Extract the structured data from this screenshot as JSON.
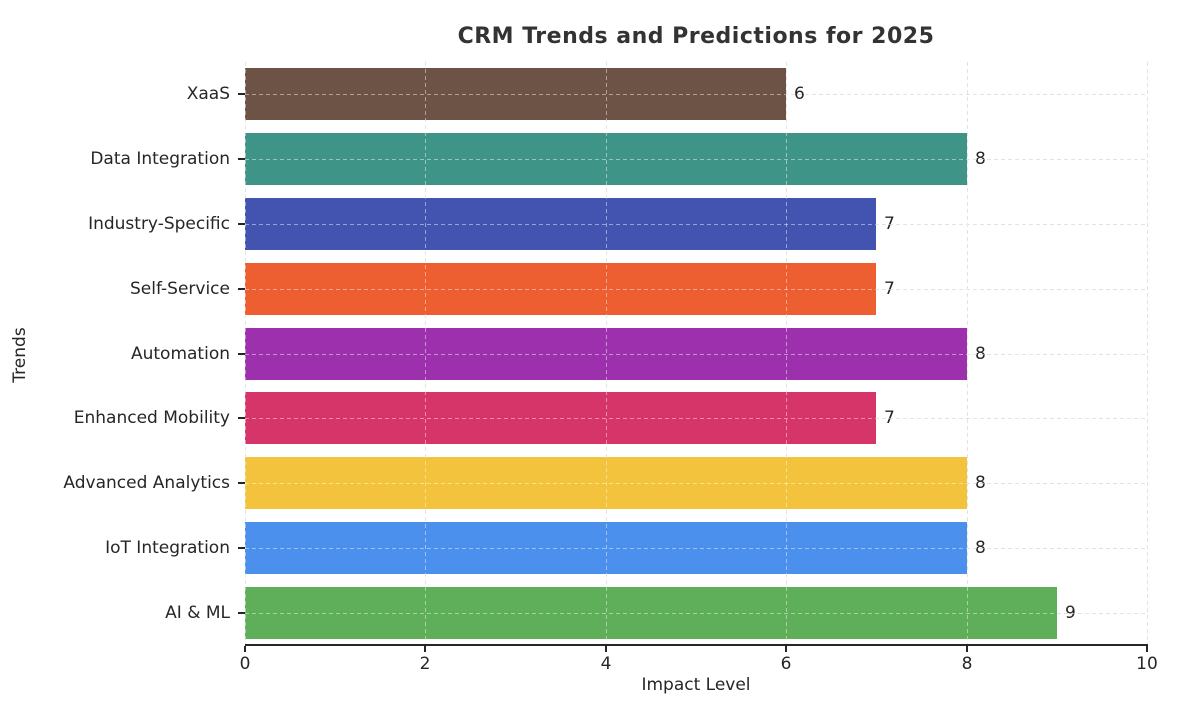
{
  "chart_data": {
    "type": "bar",
    "orientation": "horizontal",
    "title": "CRM Trends and Predictions for 2025",
    "xlabel": "Impact Level",
    "ylabel": "Trends",
    "categories": [
      "XaaS",
      "Data Integration",
      "Industry-Specific",
      "Self-Service",
      "Automation",
      "Enhanced Mobility",
      "Advanced Analytics",
      "IoT Integration",
      "AI & ML"
    ],
    "values": [
      6,
      8,
      7,
      7,
      8,
      7,
      8,
      8,
      9
    ],
    "bar_colors": [
      "#6d5246",
      "#3f9488",
      "#4254b0",
      "#ed5f31",
      "#9c30ad",
      "#d6356a",
      "#f3c33d",
      "#4b90ec",
      "#5fae5a"
    ],
    "value_labels": [
      6,
      8,
      7,
      7,
      8,
      7,
      8,
      8,
      9
    ],
    "xlim": [
      0,
      10
    ],
    "xticks": [
      0,
      2,
      4,
      6,
      8,
      10
    ],
    "grid": "dashed",
    "grid_color": "#cccccc",
    "axis_color": "#262626",
    "text_color": "#262626",
    "title_color": "#333333",
    "background_color": "#ffffff",
    "legend": "none",
    "bar_fraction": 0.8
  }
}
